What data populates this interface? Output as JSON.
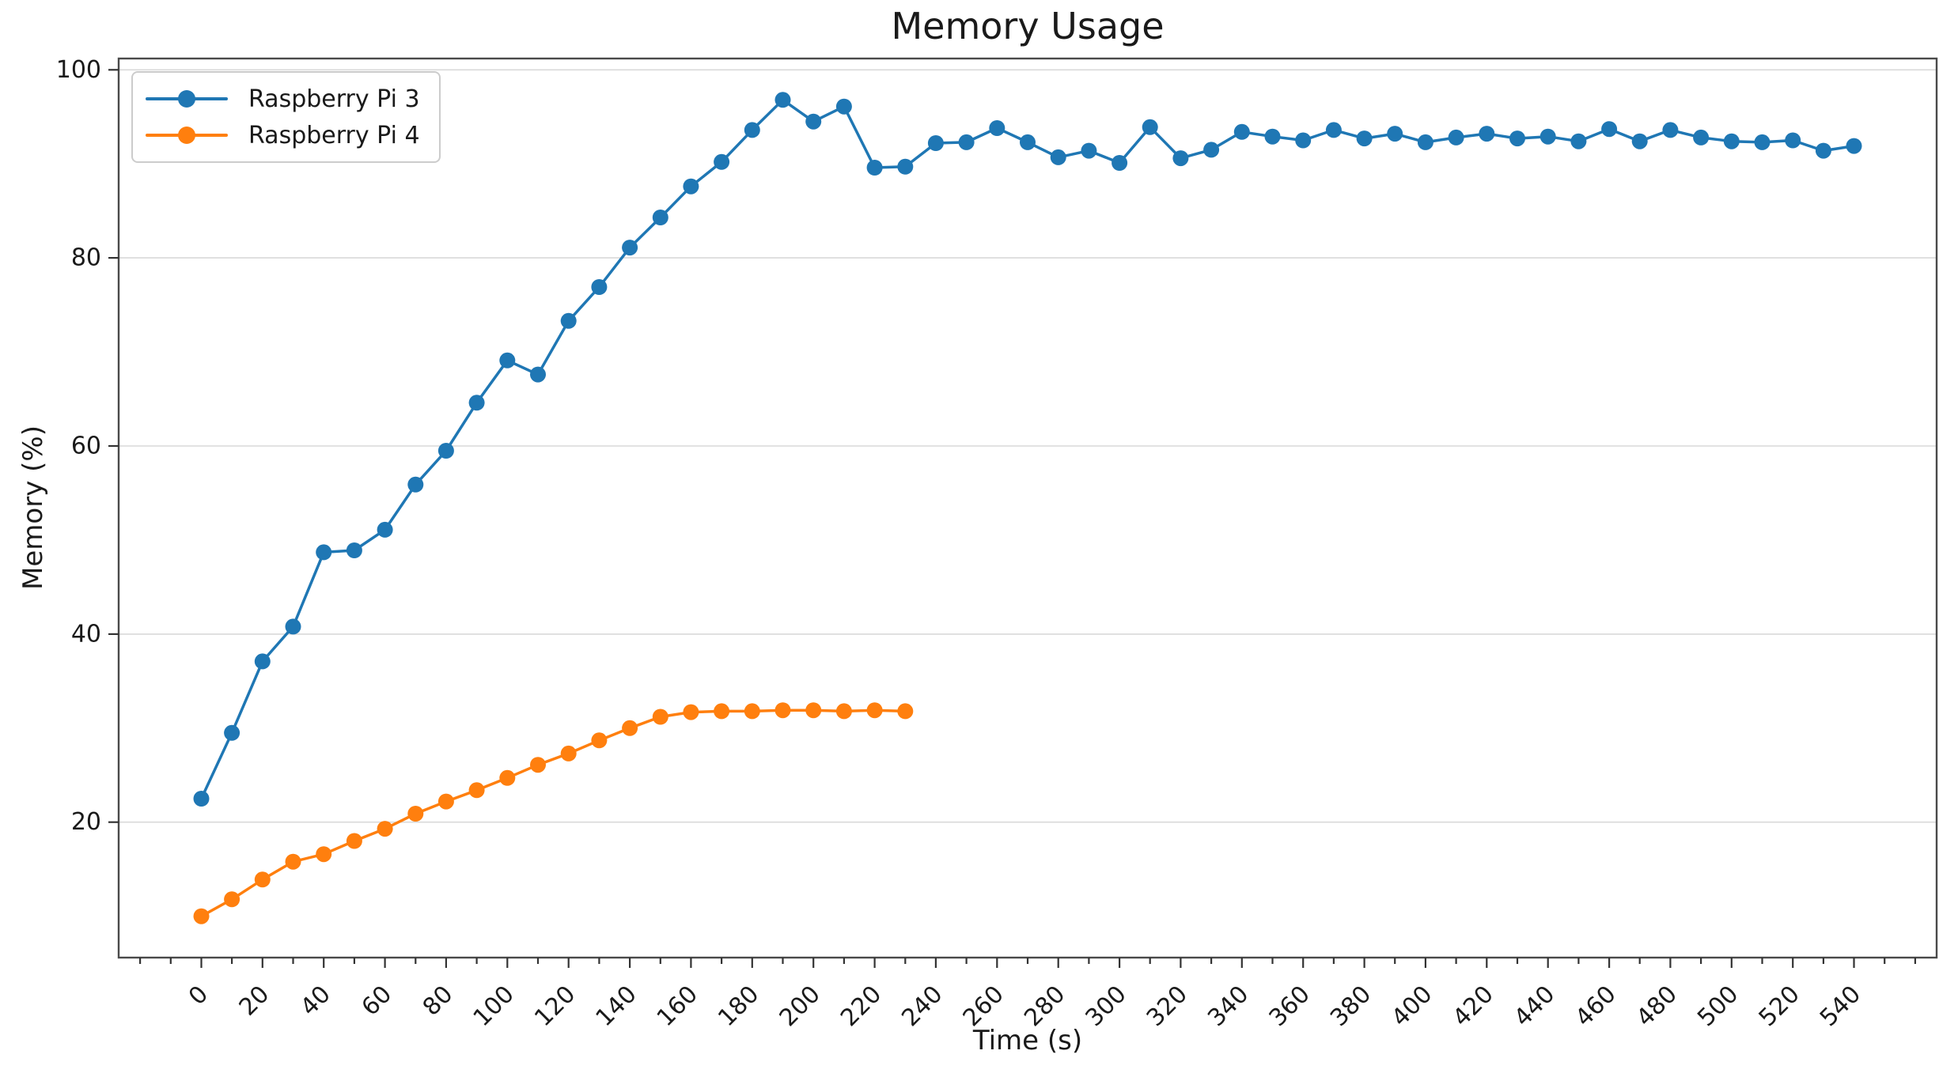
{
  "figure": {
    "title": "Memory Usage",
    "x_axis_label": "Time (s)",
    "y_axis_label": "Memory (%)"
  },
  "colors": {
    "background": "#ffffff",
    "grid": "#d9d9d9",
    "spine": "#4a4a4a",
    "tick": "#333333",
    "text": "#1a1a1a",
    "series_blue": "#1f77b4",
    "series_orange": "#ff7f0e"
  },
  "legend": {
    "position": "upper-left",
    "entries": [
      "Raspberry Pi 3",
      "Raspberry Pi 4"
    ]
  },
  "chart_data": {
    "type": "line",
    "title": "Memory Usage",
    "xlabel": "Time (s)",
    "ylabel": "Memory (%)",
    "xlim": [
      -27,
      567
    ],
    "ylim": [
      5.6,
      101.2
    ],
    "x_major_ticks": [
      0,
      20,
      40,
      60,
      80,
      100,
      120,
      140,
      160,
      180,
      200,
      220,
      240,
      260,
      280,
      300,
      320,
      340,
      360,
      380,
      400,
      420,
      440,
      460,
      480,
      500,
      520,
      540
    ],
    "x_minor_tick_step": 10,
    "x_minor_tick_range": [
      -20,
      560
    ],
    "x_tick_label_rotation": 45,
    "y_ticks": [
      20,
      40,
      60,
      80,
      100
    ],
    "grid": "horizontal-only",
    "legend_position": "upper left",
    "marker": "circle",
    "series": [
      {
        "name": "Raspberry Pi 3",
        "color": "#1f77b4",
        "x": [
          0,
          10,
          20,
          30,
          40,
          50,
          60,
          70,
          80,
          90,
          100,
          110,
          120,
          130,
          140,
          150,
          160,
          170,
          180,
          190,
          200,
          210,
          220,
          230,
          240,
          250,
          260,
          270,
          280,
          290,
          300,
          310,
          320,
          330,
          340,
          350,
          360,
          370,
          380,
          390,
          400,
          410,
          420,
          430,
          440,
          450,
          460,
          470,
          480,
          490,
          500,
          510,
          520,
          530,
          540
        ],
        "values": [
          22.5,
          29.5,
          37.1,
          40.8,
          48.7,
          48.9,
          51.1,
          55.9,
          59.5,
          64.6,
          69.1,
          67.6,
          73.3,
          76.9,
          81.1,
          84.3,
          87.6,
          90.2,
          93.6,
          96.8,
          94.5,
          96.1,
          89.6,
          89.7,
          92.2,
          92.3,
          93.8,
          92.3,
          90.7,
          91.4,
          90.1,
          93.9,
          90.6,
          91.5,
          93.4,
          92.9,
          92.5,
          93.6,
          92.7,
          93.2,
          92.3,
          92.8,
          93.2,
          92.7,
          92.9,
          92.4,
          93.7,
          92.4,
          93.6,
          92.8,
          92.4,
          92.3,
          92.5,
          91.4,
          91.9
        ]
      },
      {
        "name": "Raspberry Pi 4",
        "color": "#ff7f0e",
        "x": [
          0,
          10,
          20,
          30,
          40,
          50,
          60,
          70,
          80,
          90,
          100,
          110,
          120,
          130,
          140,
          150,
          160,
          170,
          180,
          190,
          200,
          210,
          220,
          230
        ],
        "values": [
          10.0,
          11.8,
          13.9,
          15.8,
          16.6,
          18.0,
          19.3,
          20.9,
          22.2,
          23.4,
          24.7,
          26.1,
          27.3,
          28.7,
          30.0,
          31.2,
          31.7,
          31.8,
          31.8,
          31.9,
          31.9,
          31.8,
          31.9,
          31.8
        ]
      }
    ]
  }
}
